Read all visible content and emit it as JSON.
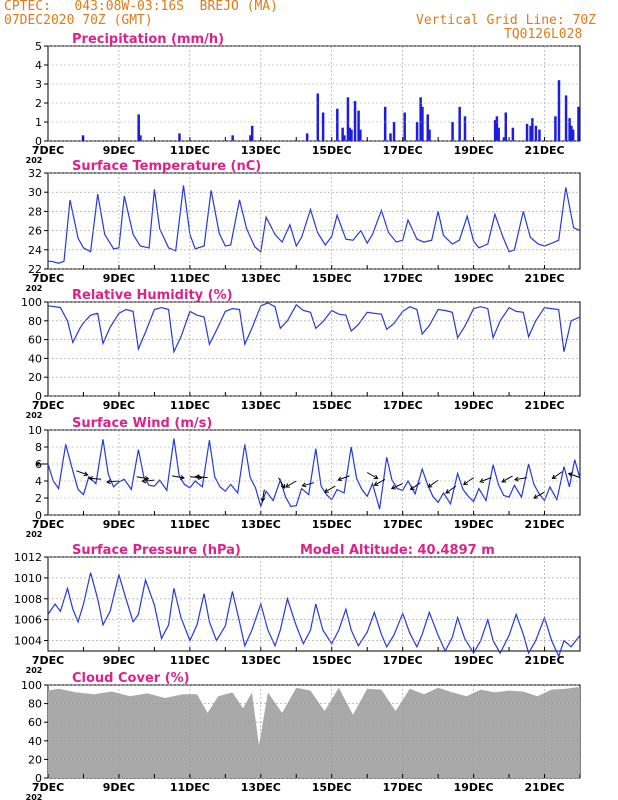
{
  "header": {
    "line1": "CPTEC:   043:08W-03:16S  BREJO (MA)",
    "line2": "07DEC2020 70Z (GMT)",
    "right1": "Vertical Grid Line: 70Z",
    "right2": "TQ0126L028"
  },
  "colors": {
    "header": "#e07a1a",
    "title": "#e0208c",
    "line": "#2438e0",
    "bar": "#1d1de0",
    "cloud": "#a9a9a9",
    "grid": "#999999"
  },
  "x_axis": {
    "start": "7DEC",
    "end": "22DEC",
    "tick_labels": [
      "7DEC",
      "9DEC",
      "11DEC",
      "13DEC",
      "15DEC",
      "17DEC",
      "19DEC",
      "21DEC"
    ],
    "tick_day_offsets": [
      0,
      2,
      4,
      6,
      8,
      10,
      12,
      14
    ],
    "corner_label": "202"
  },
  "chart_data": [
    {
      "type": "bar",
      "title": "Precipitation (mm/h)",
      "ylim": [
        0,
        5
      ],
      "yticks": [
        0,
        1,
        2,
        3,
        4,
        5
      ],
      "series": [
        {
          "day": [
            0.98,
            2.55,
            2.55,
            2.6,
            3.7,
            5.2,
            5.7,
            5.75,
            7.3,
            7.6,
            7.75,
            8.15,
            8.3,
            8.35,
            8.45,
            8.5,
            8.55,
            8.65,
            8.75,
            8.8,
            9.5,
            9.65,
            9.75,
            10.05,
            10.4,
            10.5,
            10.55,
            10.7,
            10.75,
            11.4,
            11.6,
            11.75,
            12.6,
            12.65,
            12.7,
            12.85,
            12.9,
            13.1,
            13.5,
            13.6,
            13.65,
            13.75,
            13.85,
            14.3,
            14.4,
            14.6,
            14.7,
            14.75,
            14.8,
            14.95
          ],
          "value": [
            0.3,
            0.8,
            1.4,
            0.3,
            0.4,
            0.3,
            0.3,
            0.8,
            0.4,
            2.5,
            1.5,
            1.7,
            0.7,
            0.3,
            2.3,
            0.7,
            0.6,
            2.1,
            1.6,
            0.6,
            1.8,
            0.4,
            1.0,
            1.5,
            1.0,
            2.3,
            1.8,
            1.4,
            0.6,
            1.0,
            1.8,
            1.3,
            1.1,
            1.3,
            0.7,
            0.2,
            1.5,
            0.7,
            0.9,
            0.8,
            1.2,
            0.8,
            0.6,
            1.3,
            3.2,
            2.4,
            1.2,
            0.8,
            0.6,
            1.8
          ]
        }
      ]
    },
    {
      "type": "line",
      "title": "Surface Temperature (nC)",
      "ylim": [
        22,
        32
      ],
      "yticks": [
        22,
        24,
        26,
        28,
        30,
        32
      ],
      "series": [
        {
          "day": [
            0,
            0.1,
            0.3,
            0.45,
            0.62,
            0.85,
            1,
            1.2,
            1.4,
            1.6,
            1.85,
            2,
            2.15,
            2.4,
            2.6,
            2.85,
            3,
            3.15,
            3.4,
            3.6,
            3.82,
            4,
            4.15,
            4.4,
            4.6,
            4.83,
            5,
            5.15,
            5.4,
            5.6,
            5.83,
            6,
            6.15,
            6.4,
            6.6,
            6.82,
            7,
            7.15,
            7.4,
            7.6,
            7.82,
            8,
            8.15,
            8.4,
            8.6,
            8.82,
            9,
            9.15,
            9.4,
            9.6,
            9.82,
            10,
            10.15,
            10.4,
            10.6,
            10.82,
            11,
            11.15,
            11.4,
            11.6,
            11.82,
            12,
            12.15,
            12.4,
            12.6,
            12.82,
            13,
            13.15,
            13.4,
            13.6,
            13.82,
            14,
            14.15,
            14.4,
            14.6,
            14.82,
            15
          ],
          "value": [
            22.8,
            22.8,
            22.6,
            22.8,
            29.2,
            25.2,
            24.2,
            23.8,
            29.8,
            25.6,
            24.1,
            24.2,
            29.6,
            25.6,
            24.4,
            24.2,
            30.3,
            26.2,
            24.2,
            23.9,
            30.7,
            25.6,
            24.1,
            24.4,
            30.2,
            25.7,
            24.4,
            24.5,
            29.2,
            26.2,
            24.3,
            23.8,
            27.4,
            25.6,
            24.8,
            26.6,
            24.4,
            25.3,
            28.2,
            25.8,
            24.5,
            25.4,
            27.6,
            25.1,
            25.0,
            26.0,
            24.7,
            25.6,
            28.1,
            25.8,
            24.8,
            25.0,
            27.1,
            25.1,
            24.8,
            25.0,
            28.0,
            25.5,
            24.6,
            25.0,
            27.5,
            24.9,
            24.2,
            24.6,
            27.7,
            25.4,
            23.8,
            24.0,
            28.0,
            25.3,
            24.6,
            24.4,
            24.6,
            25.0,
            30.5,
            26.3,
            26.0
          ]
        }
      ]
    },
    {
      "type": "line",
      "title": "Relative Humidity (%)",
      "ylim": [
        0,
        100
      ],
      "yticks": [
        0,
        20,
        40,
        60,
        80,
        100
      ],
      "series": [
        {
          "day": [
            0,
            0.2,
            0.35,
            0.55,
            0.7,
            0.9,
            1,
            1.2,
            1.4,
            1.55,
            1.75,
            2,
            2.2,
            2.4,
            2.55,
            2.75,
            3,
            3.2,
            3.4,
            3.55,
            3.75,
            4,
            4.2,
            4.4,
            4.55,
            4.75,
            5,
            5.2,
            5.4,
            5.55,
            5.75,
            6,
            6.2,
            6.4,
            6.55,
            6.75,
            7,
            7.2,
            7.4,
            7.55,
            7.75,
            8,
            8.2,
            8.4,
            8.55,
            8.75,
            9,
            9.2,
            9.4,
            9.55,
            9.75,
            10,
            10.2,
            10.4,
            10.55,
            10.75,
            11,
            11.2,
            11.4,
            11.55,
            11.75,
            12,
            12.2,
            12.4,
            12.55,
            12.75,
            13,
            13.2,
            13.4,
            13.55,
            13.75,
            14,
            14.2,
            14.4,
            14.55,
            14.75,
            15
          ],
          "value": [
            96,
            95,
            94,
            80,
            57,
            72,
            78,
            86,
            88,
            56,
            73,
            88,
            92,
            90,
            50,
            68,
            92,
            94,
            92,
            47,
            63,
            90,
            86,
            84,
            55,
            70,
            90,
            93,
            92,
            55,
            72,
            96,
            99,
            95,
            72,
            80,
            97,
            91,
            89,
            72,
            79,
            91,
            87,
            86,
            69,
            76,
            89,
            88,
            87,
            71,
            77,
            90,
            95,
            92,
            66,
            75,
            92,
            91,
            89,
            62,
            74,
            93,
            95,
            93,
            62,
            80,
            94,
            90,
            89,
            63,
            80,
            94,
            93,
            92,
            47,
            80,
            84
          ]
        }
      ]
    },
    {
      "type": "line",
      "title": "Surface Wind (m/s)",
      "ylim": [
        0,
        10
      ],
      "yticks": [
        0,
        2,
        4,
        6,
        8,
        10
      ],
      "series": [
        {
          "day": [
            0,
            0.15,
            0.3,
            0.5,
            0.7,
            0.85,
            1,
            1.15,
            1.35,
            1.55,
            1.7,
            1.85,
            2,
            2.15,
            2.35,
            2.55,
            2.7,
            2.85,
            3,
            3.15,
            3.35,
            3.55,
            3.7,
            3.85,
            4,
            4.15,
            4.35,
            4.55,
            4.7,
            4.85,
            5,
            5.15,
            5.35,
            5.55,
            5.7,
            5.85,
            6,
            6.15,
            6.35,
            6.55,
            6.7,
            6.85,
            7,
            7.15,
            7.35,
            7.55,
            7.7,
            7.85,
            8,
            8.15,
            8.35,
            8.55,
            8.7,
            8.85,
            9,
            9.15,
            9.35,
            9.55,
            9.7,
            9.85,
            10,
            10.15,
            10.35,
            10.55,
            10.7,
            10.85,
            11,
            11.15,
            11.35,
            11.55,
            11.7,
            11.85,
            12,
            12.15,
            12.35,
            12.55,
            12.7,
            12.85,
            13,
            13.15,
            13.35,
            13.55,
            13.7,
            13.85,
            14,
            14.15,
            14.35,
            14.55,
            14.7,
            14.85,
            15
          ],
          "value": [
            6.0,
            4.0,
            3.1,
            8.3,
            5.2,
            3.0,
            2.4,
            4.5,
            3.7,
            8.9,
            4.8,
            3.3,
            3.9,
            4.2,
            3.0,
            7.7,
            4.5,
            3.5,
            3.4,
            4.1,
            2.9,
            9.0,
            4.6,
            3.6,
            3.2,
            4.0,
            3.3,
            8.8,
            4.5,
            3.3,
            2.8,
            3.6,
            2.6,
            8.3,
            4.4,
            3.2,
            1.0,
            2.8,
            1.7,
            4.1,
            2.1,
            1.0,
            1.1,
            3.1,
            2.4,
            7.8,
            3.4,
            2.4,
            1.8,
            3.0,
            2.6,
            8.0,
            4.3,
            3.0,
            2.2,
            3.7,
            0.7,
            6.8,
            4.1,
            3.1,
            2.9,
            4.0,
            2.5,
            5.4,
            3.6,
            2.2,
            1.5,
            2.6,
            1.3,
            4.9,
            3.0,
            2.2,
            1.6,
            3.1,
            1.7,
            5.9,
            3.6,
            2.3,
            2.1,
            3.5,
            2.1,
            6.0,
            3.6,
            2.5,
            1.7,
            3.3,
            1.8,
            5.7,
            3.3,
            6.5,
            4.3
          ]
        }
      ],
      "wind_barbs": {
        "day": [
          0,
          0.8,
          1.5,
          2,
          2.5,
          3,
          3.5,
          4,
          4.5,
          6.1,
          6.5,
          7,
          7.5,
          8.1,
          8.5,
          9,
          9.5,
          10,
          10.5,
          11,
          11.5,
          12,
          12.5,
          13.1,
          13.5,
          14,
          14.5,
          15
        ],
        "speed": [
          6.0,
          5.2,
          4.2,
          4.0,
          4.5,
          4.1,
          4.6,
          4.5,
          4.4,
          3.0,
          4.4,
          4.0,
          3.8,
          3.4,
          4.6,
          5.0,
          4.2,
          3.7,
          3.8,
          4.1,
          3.4,
          4.4,
          4.4,
          4.6,
          4.4,
          2.7,
          5.1,
          4.4
        ],
        "dir_deg": [
          180,
          340,
          175,
          185,
          350,
          185,
          350,
          355,
          175,
          260,
          300,
          210,
          195,
          210,
          200,
          330,
          210,
          205,
          215,
          215,
          215,
          215,
          200,
          210,
          190,
          210,
          215,
          160
        ]
      }
    },
    {
      "type": "line",
      "title": "Surface Pressure (hPa)",
      "annotation": "Model Altitude: 40.4897 m",
      "ylim": [
        1003,
        1012
      ],
      "yticks": [
        1004,
        1006,
        1008,
        1010,
        1012
      ],
      "series": [
        {
          "day": [
            0,
            0.2,
            0.35,
            0.55,
            0.7,
            0.85,
            1,
            1.2,
            1.4,
            1.55,
            1.75,
            2,
            2.2,
            2.4,
            2.55,
            2.75,
            3,
            3.2,
            3.4,
            3.55,
            3.75,
            4,
            4.2,
            4.4,
            4.55,
            4.75,
            5,
            5.2,
            5.4,
            5.55,
            5.75,
            6,
            6.2,
            6.4,
            6.55,
            6.75,
            7,
            7.2,
            7.4,
            7.55,
            7.75,
            8,
            8.2,
            8.4,
            8.55,
            8.75,
            9,
            9.2,
            9.4,
            9.55,
            9.75,
            10,
            10.2,
            10.4,
            10.55,
            10.75,
            11,
            11.2,
            11.4,
            11.55,
            11.75,
            12,
            12.2,
            12.4,
            12.55,
            12.75,
            13,
            13.2,
            13.4,
            13.55,
            13.75,
            14,
            14.2,
            14.4,
            14.55,
            14.75,
            15
          ],
          "value": [
            1006.5,
            1007.5,
            1006.8,
            1009.0,
            1007.0,
            1005.8,
            1007.5,
            1010.5,
            1008.0,
            1005.5,
            1006.8,
            1010.3,
            1008.0,
            1005.8,
            1006.5,
            1009.8,
            1007.4,
            1004.2,
            1005.5,
            1009.0,
            1006.2,
            1004.0,
            1005.5,
            1008.5,
            1005.8,
            1004.0,
            1005.4,
            1008.7,
            1005.8,
            1003.5,
            1005.0,
            1007.5,
            1005.0,
            1003.5,
            1005.0,
            1008.0,
            1005.4,
            1003.7,
            1005.0,
            1007.5,
            1005.0,
            1003.7,
            1005.0,
            1007.0,
            1005.0,
            1003.5,
            1004.8,
            1006.7,
            1004.6,
            1003.4,
            1004.5,
            1006.6,
            1004.7,
            1003.4,
            1004.6,
            1006.7,
            1004.5,
            1003.0,
            1004.3,
            1006.2,
            1004.2,
            1002.8,
            1004.0,
            1006.0,
            1004.0,
            1002.8,
            1004.5,
            1006.5,
            1004.6,
            1002.8,
            1004.0,
            1006.2,
            1004.0,
            1002.5,
            1004.0,
            1003.4,
            1004.5
          ]
        }
      ]
    },
    {
      "type": "area",
      "title": "Cloud Cover (%)",
      "ylim": [
        0,
        100
      ],
      "yticks": [
        0,
        20,
        40,
        60,
        80,
        100
      ],
      "series": [
        {
          "day": [
            0,
            0.3,
            0.8,
            1.3,
            1.8,
            2.3,
            2.8,
            3.3,
            3.8,
            4.2,
            4.5,
            4.8,
            5.2,
            5.5,
            5.75,
            5.95,
            6.2,
            6.6,
            7,
            7.4,
            7.8,
            8.2,
            8.6,
            9,
            9.4,
            9.8,
            10.2,
            10.6,
            11,
            11.4,
            11.8,
            12.2,
            12.6,
            13,
            13.4,
            13.8,
            14.2,
            14.6,
            15
          ],
          "value": [
            94,
            96,
            92,
            90,
            93,
            88,
            91,
            86,
            90,
            90,
            70,
            88,
            92,
            75,
            92,
            35,
            92,
            70,
            97,
            94,
            72,
            97,
            68,
            96,
            95,
            72,
            96,
            90,
            97,
            92,
            88,
            95,
            92,
            94,
            93,
            88,
            95,
            96,
            98
          ]
        }
      ]
    }
  ]
}
